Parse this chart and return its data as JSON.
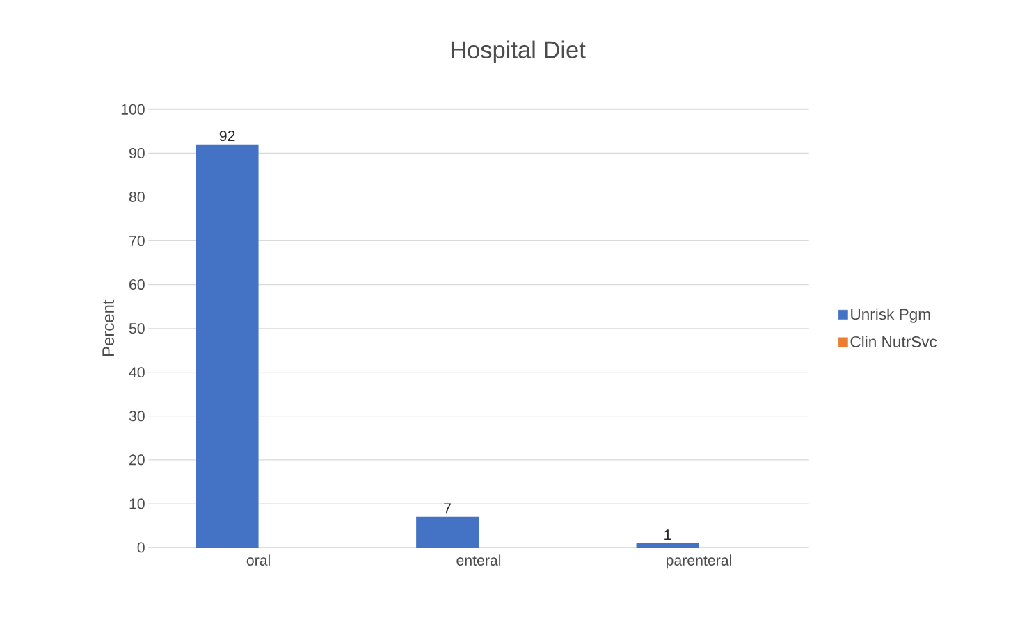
{
  "chart_data": {
    "type": "bar",
    "title": "Hospital Diet",
    "ylabel": "Percent",
    "categories": [
      "oral",
      "enteral",
      "parenteral"
    ],
    "series": [
      {
        "name": "Unrisk Pgm",
        "color": "#4472c4",
        "values": [
          92,
          7,
          1
        ]
      },
      {
        "name": "Clin NutrSvc",
        "color": "#ed7d31",
        "values": [
          null,
          null,
          null
        ]
      }
    ],
    "ylim": [
      0,
      100
    ],
    "yticks": [
      0,
      10,
      20,
      30,
      40,
      50,
      60,
      70,
      80,
      90,
      100
    ],
    "grid": "y",
    "legend": "right",
    "data_labels": true
  }
}
